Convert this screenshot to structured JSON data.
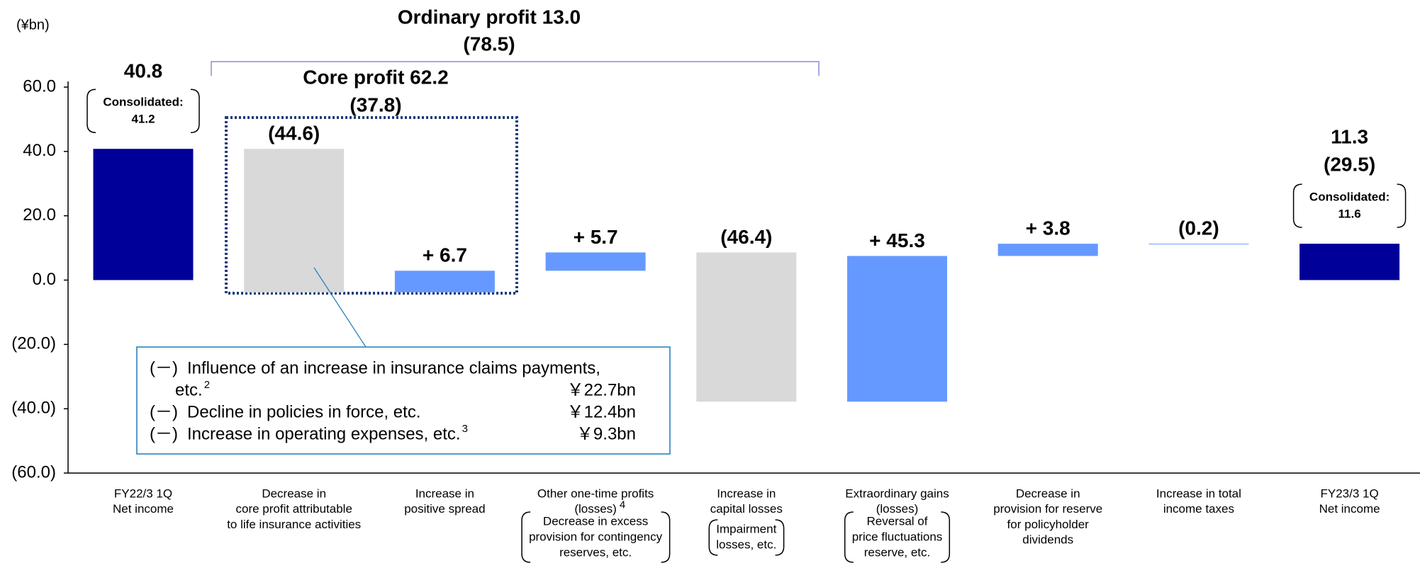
{
  "chart_data": {
    "type": "waterfall",
    "unit": "(¥bn)",
    "categories": [
      [
        "FY22/3 1Q",
        "Net income"
      ],
      [
        "Decrease in",
        "core profit attributable",
        "to life insurance activities"
      ],
      [
        "Increase in",
        "positive spread"
      ],
      [
        "Other one-time profits",
        "(losses)"
      ],
      [
        "Increase in",
        "capital losses"
      ],
      [
        "Extraordinary gains",
        "(losses)"
      ],
      [
        "Decrease in",
        "provision for reserve",
        "for policyholder",
        "dividends"
      ],
      [
        "Increase in total",
        "income taxes"
      ],
      [
        "FY23/3 1Q",
        "Net income"
      ]
    ],
    "other_one_time_footnote": "4",
    "notes": {
      "other_one_time": [
        "Decrease in excess",
        "provision for contingency",
        "reserves, etc."
      ],
      "capital_losses": [
        "Impairment",
        "losses, etc."
      ],
      "extraordinary": [
        "Reversal of",
        "price fluctuations",
        "reserve, etc."
      ]
    },
    "kinds": [
      "total",
      "delta",
      "delta",
      "delta",
      "delta",
      "delta",
      "delta",
      "delta",
      "total"
    ],
    "values": [
      40.8,
      -44.6,
      6.7,
      5.7,
      -46.4,
      45.3,
      3.8,
      -0.2,
      11.3
    ],
    "value_labels": [
      "40.8",
      "(44.6)",
      "+ 6.7",
      "+ 5.7",
      "(46.4)",
      "+ 45.3",
      "+ 3.8",
      "(0.2)",
      "11.3"
    ],
    "colors": [
      "#000099",
      "#d9d9d9",
      "#6699ff",
      "#6699ff",
      "#d9d9d9",
      "#6699ff",
      "#6699ff",
      "#6699ff",
      "#000099"
    ],
    "prior_year_label": "(29.5)",
    "consolidated": {
      "title": "Consolidated:",
      "start": "41.2",
      "end": "11.6"
    },
    "ordinary_profit": {
      "label": "Ordinary profit  13.0",
      "prior": "(78.5)"
    },
    "core_profit": {
      "label": "Core profit 62.2",
      "prior": "(37.8)"
    },
    "callout": [
      {
        "sign": "(－)",
        "text": "Influence of an increase in insurance claims payments,",
        "cont": "etc.",
        "sup": "2",
        "amount": "￥22.7bn"
      },
      {
        "sign": "(－)",
        "text": "Decline in policies in force, etc.",
        "amount": "￥12.4bn"
      },
      {
        "sign": "(－)",
        "text": "Increase in operating expenses, etc.",
        "sup": "3",
        "amount": "￥9.3bn"
      }
    ],
    "ylim": [
      -60,
      60
    ],
    "yticks": [
      {
        "value": -60,
        "label": "(60.0)"
      },
      {
        "value": -40,
        "label": "(40.0)"
      },
      {
        "value": -20,
        "label": "(20.0)"
      },
      {
        "value": 0,
        "label": "0.0"
      },
      {
        "value": 20,
        "label": "20.0"
      },
      {
        "value": 40,
        "label": "40.0"
      },
      {
        "value": 60,
        "label": "60.0"
      }
    ],
    "grid": false
  }
}
